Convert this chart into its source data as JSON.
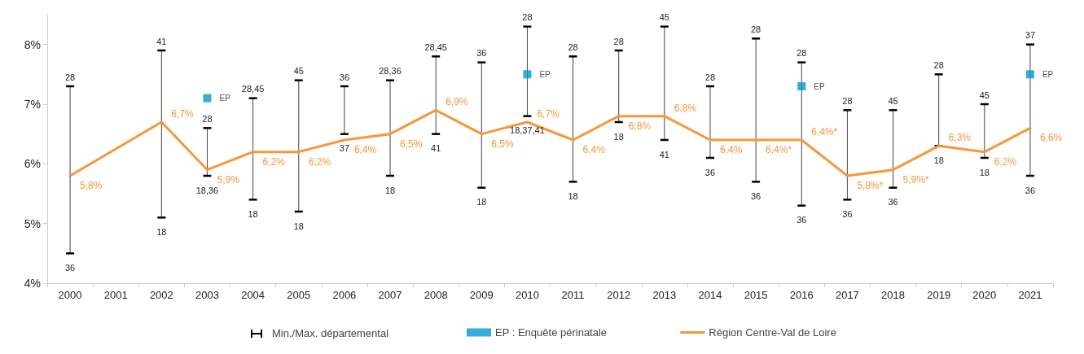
{
  "chart_data": {
    "type": "line",
    "categories": [
      "2000",
      "2001",
      "2002",
      "2003",
      "2004",
      "2005",
      "2006",
      "2007",
      "2008",
      "2009",
      "2010",
      "2011",
      "2012",
      "2013",
      "2014",
      "2015",
      "2016",
      "2017",
      "2018",
      "2019",
      "2020",
      "2021"
    ],
    "ylim": [
      4,
      8.5
    ],
    "yticks": [
      {
        "value": 4,
        "label": "4%"
      },
      {
        "value": 5,
        "label": "5%"
      },
      {
        "value": 6,
        "label": "6%"
      },
      {
        "value": 7,
        "label": "7%"
      },
      {
        "value": 8,
        "label": "8%"
      }
    ],
    "grid": false,
    "legend": "bottom",
    "series": [
      {
        "name": "EP : Enquête périnatale",
        "type": "scatter",
        "marker": "square",
        "color": "#0098d0",
        "values": [
          null,
          null,
          null,
          7.1,
          null,
          null,
          null,
          null,
          null,
          null,
          7.5,
          null,
          null,
          null,
          null,
          null,
          7.3,
          null,
          null,
          null,
          null,
          7.5
        ],
        "value_labels": [
          null,
          null,
          null,
          "EP",
          null,
          null,
          null,
          null,
          null,
          null,
          "EP",
          null,
          null,
          null,
          null,
          null,
          "EP",
          null,
          null,
          null,
          null,
          "EP"
        ]
      },
      {
        "name": "Région Centre-Val de Loire",
        "marker": "none",
        "color": "#f7963a",
        "values": [
          5.8,
          null,
          6.7,
          5.9,
          6.2,
          6.2,
          6.4,
          6.5,
          6.9,
          6.5,
          6.7,
          6.4,
          6.8,
          6.8,
          6.4,
          6.4,
          6.4,
          5.8,
          5.9,
          6.3,
          6.2,
          6.6
        ],
        "value_labels": [
          "5,8%",
          null,
          "6,7%",
          "5,9%",
          "6,2%",
          "6,2%",
          "6,4%",
          "6,5%",
          "6,9%",
          "6,5%",
          "6,7%",
          "6,4%",
          "6,8%",
          "6,8%",
          "6,4%",
          "6,4%*",
          "6,4%*",
          "5,8%*",
          "5,9%*",
          "6,3%",
          "6,2%",
          "6,6%"
        ],
        "errors": [
          [
            4.5,
            7.3
          ],
          null,
          [
            5.1,
            7.9
          ],
          [
            5.8,
            6.6
          ],
          [
            5.4,
            7.1
          ],
          [
            5.2,
            7.4
          ],
          [
            6.5,
            7.3
          ],
          [
            5.8,
            7.4
          ],
          [
            6.5,
            7.8
          ],
          [
            5.6,
            7.7
          ],
          [
            6.8,
            8.3
          ],
          [
            5.7,
            7.8
          ],
          [
            6.7,
            7.9
          ],
          [
            6.4,
            8.3
          ],
          [
            6.1,
            7.3
          ],
          [
            5.7,
            8.1
          ],
          [
            5.3,
            7.7
          ],
          [
            5.4,
            6.9
          ],
          [
            5.6,
            6.9
          ],
          [
            6.3,
            7.5
          ],
          [
            6.1,
            7.0
          ],
          [
            5.8,
            8.0
          ]
        ]
      }
    ],
    "annotations": [
      "Min./Max. départemental",
      "28",
      "36",
      "41",
      "18",
      "28",
      "18,36",
      "28,45",
      "18",
      "45",
      "18",
      "36",
      "37",
      "28,36",
      "18",
      "28,45",
      "41",
      "36",
      "18",
      "28",
      "18,37,41",
      "28",
      "18",
      "28",
      "18",
      "45",
      "41",
      "28",
      "36",
      "28",
      "36",
      "28",
      "36",
      "28",
      "36",
      "45",
      "36",
      "28",
      "18",
      "45",
      "18",
      "37",
      "36"
    ]
  }
}
